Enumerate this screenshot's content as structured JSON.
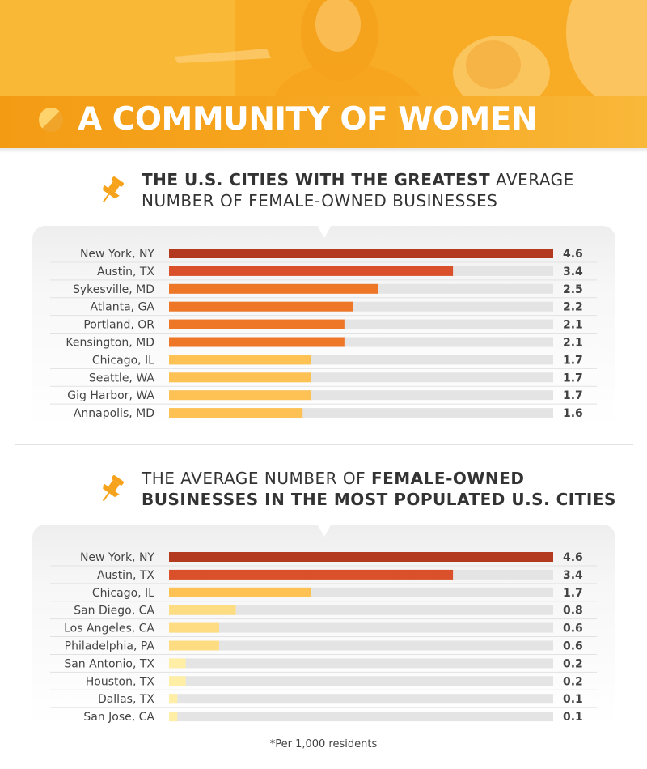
{
  "header": {
    "title": "A COMMUNITY OF WOMEN",
    "photo_desc_icon": "women-at-whiteboard-photo"
  },
  "colors": {
    "banner": "#f7a21b",
    "tier1": "#b43a1f",
    "tier2": "#d9502a",
    "tier3": "#ee7627",
    "tier4": "#fdc253",
    "tier5": "#fedd82",
    "tier6": "#feeea6",
    "track": "#e4e4e4"
  },
  "section1": {
    "title_bold": "THE U.S. CITIES WITH THE GREATEST",
    "title_rest": " AVERAGE",
    "title_line2": "NUMBER OF FEMALE-OWNED BUSINESSES",
    "icon": "push-pin-icon"
  },
  "section2": {
    "title_light": "THE AVERAGE NUMBER OF ",
    "title_bold": "FEMALE-OWNED",
    "title_line2": "BUSINESSES IN THE MOST POPULATED U.S. CITIES",
    "icon": "push-pin-icon"
  },
  "footnote": "*Per 1,000 residents",
  "chart_data": [
    {
      "type": "bar",
      "orientation": "horizontal",
      "title": "THE U.S. CITIES WITH THE GREATEST AVERAGE NUMBER OF FEMALE-OWNED BUSINESSES",
      "categories": [
        "New York, NY",
        "Austin, TX",
        "Sykesville, MD",
        "Atlanta, GA",
        "Portland, OR",
        "Kensington, MD",
        "Chicago, IL",
        "Seattle, WA",
        "Gig Harbor, WA",
        "Annapolis, MD"
      ],
      "values": [
        4.6,
        3.4,
        2.5,
        2.2,
        2.1,
        2.1,
        1.7,
        1.7,
        1.7,
        1.6
      ],
      "labels": [
        "4.6",
        "3.4",
        "2.5",
        "2.2",
        "2.1",
        "2.1",
        "1.7",
        "1.7",
        "1.7",
        "1.6"
      ],
      "tiers": [
        "tier1",
        "tier2",
        "tier3",
        "tier3",
        "tier3",
        "tier3",
        "tier4",
        "tier4",
        "tier4",
        "tier4"
      ],
      "xlim": [
        0,
        4.6
      ],
      "unit": "*Per 1,000 residents"
    },
    {
      "type": "bar",
      "orientation": "horizontal",
      "title": "THE AVERAGE NUMBER OF FEMALE-OWNED BUSINESSES IN THE MOST POPULATED U.S. CITIES",
      "categories": [
        "New York, NY",
        "Austin, TX",
        "Chicago, IL",
        "San Diego, CA",
        "Los Angeles, CA",
        "Philadelphia, PA",
        "San Antonio, TX",
        "Houston, TX",
        "Dallas, TX",
        "San Jose, CA"
      ],
      "values": [
        4.6,
        3.4,
        1.7,
        0.8,
        0.6,
        0.6,
        0.2,
        0.2,
        0.1,
        0.1
      ],
      "labels": [
        "4.6",
        "3.4",
        "1.7",
        "0.8",
        "0.6",
        "0.6",
        "0.2",
        "0.2",
        "0.1",
        "0.1"
      ],
      "tiers": [
        "tier1",
        "tier2",
        "tier4",
        "tier5",
        "tier5",
        "tier5",
        "tier6",
        "tier6",
        "tier6",
        "tier6"
      ],
      "xlim": [
        0,
        4.6
      ],
      "unit": "*Per 1,000 residents"
    }
  ]
}
